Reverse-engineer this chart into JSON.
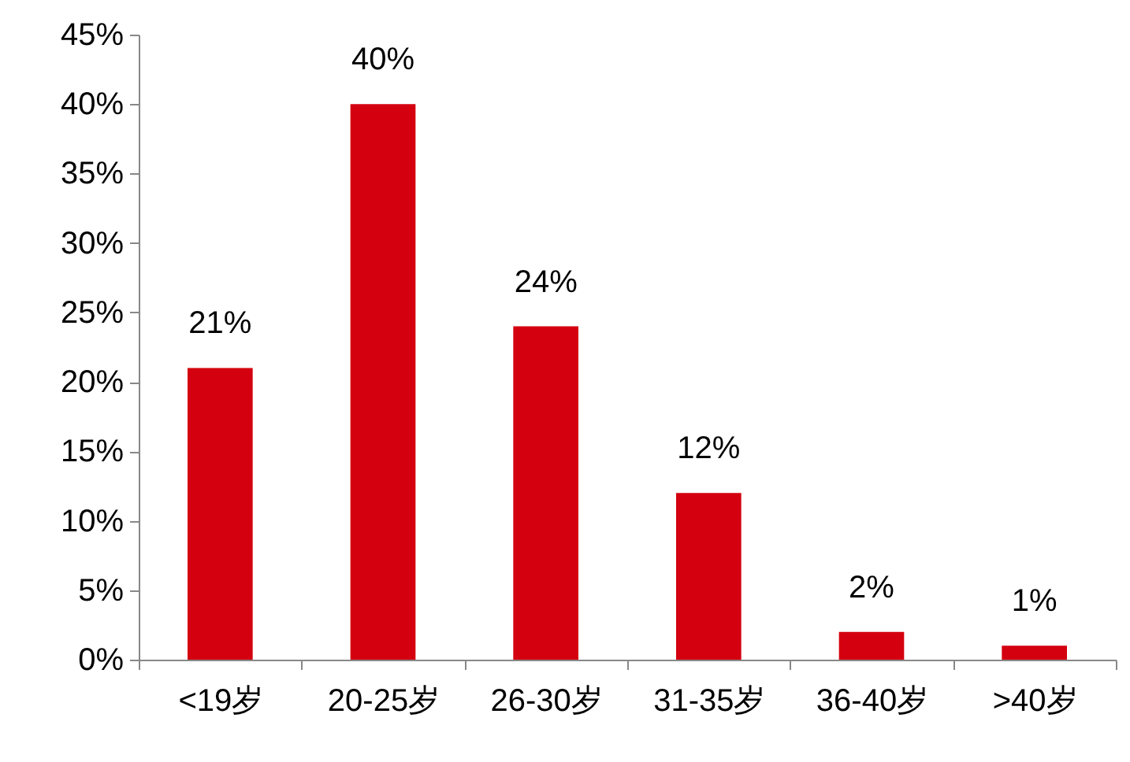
{
  "chart_data": {
    "type": "bar",
    "categories": [
      "<19岁",
      "20-25岁",
      "26-30岁",
      "31-35岁",
      "36-40岁",
      ">40岁"
    ],
    "values": [
      21,
      40,
      24,
      12,
      2,
      1
    ],
    "value_labels": [
      "21%",
      "40%",
      "24%",
      "12%",
      "2%",
      "1%"
    ],
    "color": "#d4000f",
    "ylim": [
      0,
      45
    ],
    "yticks": [
      {
        "value": 0,
        "label": "0%"
      },
      {
        "value": 5,
        "label": "5%"
      },
      {
        "value": 10,
        "label": "10%"
      },
      {
        "value": 15,
        "label": "15%"
      },
      {
        "value": 20,
        "label": "20%"
      },
      {
        "value": 25,
        "label": "25%"
      },
      {
        "value": 30,
        "label": "30%"
      },
      {
        "value": 35,
        "label": "35%"
      },
      {
        "value": 40,
        "label": "40%"
      },
      {
        "value": 45,
        "label": "45%"
      }
    ],
    "grid": false
  }
}
